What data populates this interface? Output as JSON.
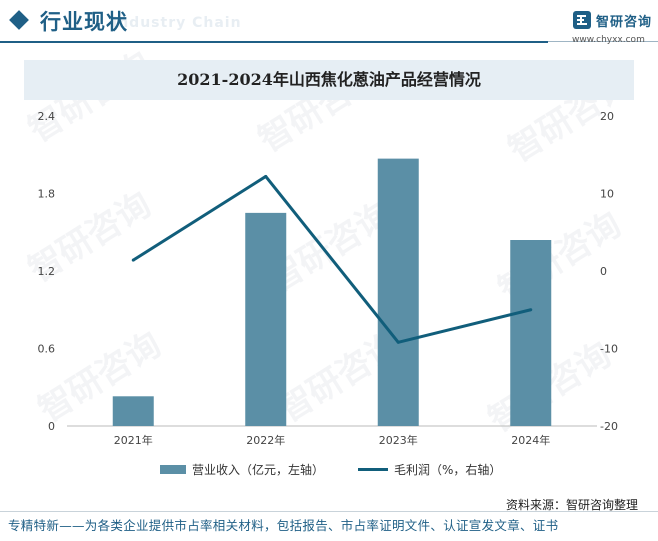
{
  "header": {
    "title": "行业现状",
    "subtitle_en": "Industry Chain"
  },
  "brand": {
    "name": "智研咨询",
    "url": "www.chyxx.com"
  },
  "colors": {
    "accent": "#1f5f86",
    "bar": "#5b8fa6",
    "line": "#115e7b"
  },
  "chart_data": {
    "type": "bar",
    "title": "2021-2024年山西焦化蒽油产品经营情况",
    "categories": [
      "2021年",
      "2022年",
      "2023年",
      "2024年"
    ],
    "series": [
      {
        "name": "营业收入（亿元，左轴）",
        "type": "bar",
        "axis": "left",
        "values": [
          0.23,
          1.65,
          2.07,
          1.44
        ]
      },
      {
        "name": "毛利润（%，右轴）",
        "type": "line",
        "axis": "right",
        "values": [
          1.4,
          12.2,
          -9.2,
          -5.0
        ]
      }
    ],
    "y_left": {
      "min": 0,
      "max": 2.4,
      "ticks": [
        "0",
        "0.6",
        "1.2",
        "1.8",
        "2.4"
      ]
    },
    "y_right": {
      "min": -20,
      "max": 20,
      "ticks": [
        "-20",
        "-10",
        "0",
        "10",
        "20"
      ]
    },
    "legend_position": "bottom",
    "grid": false
  },
  "source": "资料来源：智研咨询整理",
  "footer": "专精特新——为各类企业提供市占率相关材料，包括报告、市占率证明文件、认证宣发文章、证书",
  "watermark": "智研咨询"
}
